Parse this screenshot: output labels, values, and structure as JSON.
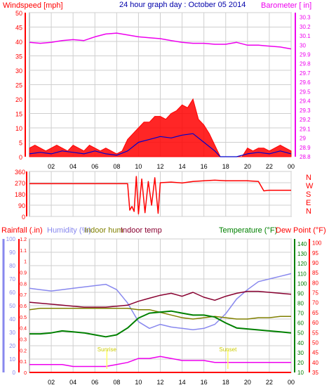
{
  "header": {
    "left_label": "Windspeed [mph]",
    "title": "24 hour graph day : October 05 2014",
    "right_label": "Barometer [ in]"
  },
  "bottom_header": {
    "rainfall": "Rainfall (.in)",
    "humidity": "Humidity (%)",
    "indoor_hum": "Indoor hum",
    "indoor_temp": "Indoor temp",
    "temperature": "Temperature (°F)",
    "dewpoint": "Dew Point (°F)"
  },
  "colors": {
    "wind": "#ff0000",
    "wind_avg": "#0000cc",
    "barometer": "#ee00ee",
    "direction": "#ff0000",
    "rain": "#ff0000",
    "humidity": "#8888ee",
    "indoor_hum": "#808000",
    "indoor_temp": "#880030",
    "temperature": "#008000",
    "dewpoint": "#ff0000",
    "grid": "#cfcfcf"
  },
  "x_ticks": [
    "02",
    "04",
    "06",
    "08",
    "10",
    "12",
    "14",
    "16",
    "18",
    "20",
    "22",
    "00"
  ],
  "chart_data": [
    {
      "type": "line",
      "name": "wind-barometer",
      "x_range": [
        0,
        24
      ],
      "left_axis": {
        "label": "Windspeed [mph]",
        "range": [
          0,
          50
        ],
        "ticks": [
          0,
          5,
          10,
          15,
          20,
          25,
          30,
          35,
          40,
          45,
          50
        ]
      },
      "right_axis": {
        "label": "Barometer [ in]",
        "range": [
          28.8,
          30.35
        ],
        "ticks": [
          "28.8",
          "28.9",
          "29",
          "29.1",
          "29.2",
          "29.3",
          "29.4",
          "29.5",
          "29.6",
          "29.7",
          "29.8",
          "29.9",
          "30",
          "30.1",
          "30.2",
          "30.3"
        ]
      },
      "series": [
        {
          "name": "Windspeed [mph]",
          "axis": "left",
          "kind": "band",
          "x": [
            0,
            0.5,
            1,
            1.5,
            2,
            2.5,
            3,
            3.5,
            4,
            4.5,
            5,
            5.5,
            6,
            6.5,
            7,
            7.5,
            8,
            8.5,
            9,
            9.5,
            10,
            10.5,
            11,
            11.5,
            12,
            12.5,
            13,
            13.5,
            14,
            14.5,
            15,
            15.5,
            16,
            16.5,
            17,
            17.5,
            18,
            18.5,
            19,
            19.5,
            20,
            20.5,
            21,
            21.5,
            22,
            22.5,
            23,
            23.5,
            24
          ],
          "low": [
            0,
            0,
            0,
            0,
            0,
            0,
            0,
            0,
            0,
            0,
            0,
            0,
            0,
            0,
            0,
            0,
            0,
            0,
            0,
            0,
            0,
            0,
            0,
            0,
            0,
            0,
            0,
            0,
            0,
            0,
            0,
            0,
            0,
            0,
            0,
            0,
            0,
            0,
            0,
            0,
            0,
            0,
            0,
            0,
            0,
            0,
            0,
            0,
            0
          ],
          "high": [
            3,
            4,
            3,
            2,
            3,
            4,
            3,
            2,
            4,
            3,
            2,
            4,
            3,
            2,
            3,
            2,
            1,
            2,
            6,
            8,
            10,
            12,
            12,
            14,
            14,
            13,
            15,
            16,
            18,
            17,
            20,
            13,
            11,
            8,
            4,
            0,
            0,
            0,
            0,
            0,
            3,
            2,
            3,
            3,
            2,
            3,
            4,
            3,
            2
          ]
        },
        {
          "name": "Average wind",
          "axis": "left",
          "x": [
            0,
            1,
            2,
            3,
            4,
            5,
            6,
            7,
            8,
            9,
            10,
            11,
            12,
            13,
            14,
            15,
            16,
            17,
            17.5,
            18,
            19,
            20,
            21,
            22,
            23,
            24
          ],
          "y": [
            1,
            1.5,
            1,
            2,
            1.5,
            1,
            2,
            1,
            0.5,
            2,
            5,
            6,
            7,
            6.5,
            7.5,
            8,
            5,
            2,
            0,
            0,
            0,
            1,
            1.5,
            1,
            2,
            1
          ]
        },
        {
          "name": "Barometer [ in]",
          "axis": "right",
          "x": [
            0,
            1,
            2,
            3,
            4,
            5,
            6,
            7,
            8,
            9,
            10,
            11,
            12,
            13,
            14,
            15,
            16,
            17,
            18,
            19,
            20,
            21,
            22,
            23,
            24
          ],
          "y": [
            30.03,
            30.02,
            30.03,
            30.05,
            30.06,
            30.05,
            30.09,
            30.12,
            30.13,
            30.11,
            30.09,
            30.08,
            30.07,
            30.05,
            30.03,
            30.02,
            30.02,
            30.01,
            30.01,
            30.03,
            30.0,
            30.0,
            29.99,
            29.98,
            29.96
          ]
        }
      ]
    },
    {
      "type": "line",
      "name": "wind-direction",
      "x_range": [
        0,
        24
      ],
      "left_axis": {
        "range": [
          0,
          360
        ],
        "ticks": [
          0,
          90,
          180,
          270,
          360
        ]
      },
      "right_axis": {
        "ticks": [
          "N",
          "W",
          "S",
          "E",
          "N"
        ]
      },
      "series": [
        {
          "name": "Direction",
          "x": [
            0,
            9,
            9.2,
            9.4,
            9.6,
            9.8,
            10,
            10.3,
            10.6,
            10.9,
            11.2,
            11.5,
            11.8,
            12,
            13,
            14,
            15,
            16,
            17,
            18,
            19,
            20,
            21,
            21.5,
            22,
            23,
            24
          ],
          "y": [
            262,
            262,
            50,
            80,
            40,
            320,
            20,
            300,
            30,
            280,
            90,
            310,
            25,
            270,
            275,
            268,
            280,
            285,
            290,
            285,
            285,
            285,
            280,
            205,
            210,
            210,
            210
          ]
        }
      ]
    },
    {
      "type": "line",
      "name": "temp-humidity-rain",
      "x_range": [
        0,
        24
      ],
      "rain_axis": {
        "label": "Rainfall (.in)",
        "range": [
          0,
          1.2
        ],
        "ticks": [
          "0",
          "0.1",
          "0.2",
          "0.3",
          "0.4",
          "0.5",
          "0.6",
          "0.7",
          "0.8",
          "0.9",
          "1",
          "1.1",
          "1.2"
        ]
      },
      "humidity_axis": {
        "label": "Humidity (%)",
        "range": [
          0,
          100
        ],
        "ticks": [
          0,
          10,
          20,
          30,
          40,
          50,
          60,
          70,
          80,
          90,
          100
        ]
      },
      "temperature_axis": {
        "label": "Temperature (°F)",
        "range": [
          10,
          145
        ],
        "ticks": [
          10,
          20,
          30,
          40,
          50,
          60,
          70,
          80,
          90,
          100,
          110,
          120,
          130,
          140
        ]
      },
      "dewpoint_axis": {
        "label": "Dew Point (°F)",
        "range": [
          35,
          102
        ],
        "ticks": [
          35,
          40,
          45,
          50,
          55,
          60,
          65,
          70,
          75,
          80,
          85,
          90,
          95,
          100
        ]
      },
      "annotations": [
        {
          "text": "Sunrise",
          "x": 7.1
        },
        {
          "text": "Sunset",
          "x": 18.2
        }
      ],
      "series": [
        {
          "name": "Rainfall (.in)",
          "axis": "rain",
          "x": [
            0,
            24
          ],
          "y": [
            0,
            0
          ]
        },
        {
          "name": "Humidity (%)",
          "axis": "humidity",
          "x": [
            0,
            1,
            2,
            3,
            4,
            5,
            6,
            7,
            8,
            9,
            10,
            11,
            12,
            13,
            14,
            15,
            16,
            17,
            18,
            19,
            20,
            21,
            22,
            23,
            24
          ],
          "y": [
            63,
            62,
            61,
            62,
            63,
            64,
            65,
            66,
            62,
            52,
            38,
            33,
            36,
            34,
            33,
            32,
            33,
            36,
            44,
            55,
            62,
            68,
            70,
            72,
            74
          ]
        },
        {
          "name": "Indoor hum",
          "axis": "humidity",
          "x": [
            0,
            1,
            2,
            3,
            4,
            5,
            6,
            7,
            8,
            9,
            10,
            11,
            12,
            13,
            14,
            15,
            16,
            17,
            18,
            19,
            20,
            21,
            22,
            23,
            24
          ],
          "y": [
            47,
            48,
            48,
            48,
            48,
            48,
            48,
            48,
            48,
            48,
            47,
            47,
            45,
            43,
            41,
            40,
            41,
            42,
            41,
            40,
            40,
            41,
            41,
            42,
            42
          ]
        },
        {
          "name": "Indoor temp",
          "axis": "temperature",
          "x": [
            0,
            1,
            2,
            3,
            4,
            5,
            6,
            7,
            8,
            9,
            10,
            11,
            12,
            13,
            14,
            15,
            16,
            17,
            18,
            19,
            20,
            21,
            22,
            23,
            24
          ],
          "y": [
            81,
            80,
            79,
            78,
            77,
            76,
            76,
            76,
            77,
            78,
            82,
            85,
            88,
            90,
            87,
            91,
            86,
            83,
            87,
            90,
            92,
            92,
            91,
            90,
            89
          ]
        },
        {
          "name": "Temperature (°F)",
          "axis": "temperature",
          "x": [
            0,
            1,
            2,
            3,
            4,
            5,
            6,
            7,
            8,
            9,
            10,
            11,
            12,
            13,
            14,
            15,
            16,
            17,
            18,
            19,
            20,
            21,
            22,
            23,
            24
          ],
          "y": [
            49,
            49,
            50,
            52,
            51,
            50,
            48,
            46,
            48,
            55,
            65,
            70,
            71,
            72,
            70,
            68,
            68,
            66,
            60,
            55,
            54,
            53,
            52,
            51,
            50
          ]
        },
        {
          "name": "Dew Point (°F)",
          "axis": "dewpoint",
          "x": [
            0,
            1,
            2,
            3,
            4,
            5,
            6,
            7,
            8,
            9,
            10,
            11,
            12,
            13,
            14,
            15,
            16,
            17,
            18,
            19,
            20,
            21,
            22,
            23,
            24
          ],
          "y": [
            39,
            39,
            39,
            39,
            38,
            38,
            38,
            38,
            39,
            40,
            42,
            42,
            43,
            42,
            41,
            41,
            41,
            40,
            40,
            40,
            40,
            40,
            40,
            40,
            40
          ]
        }
      ]
    }
  ]
}
